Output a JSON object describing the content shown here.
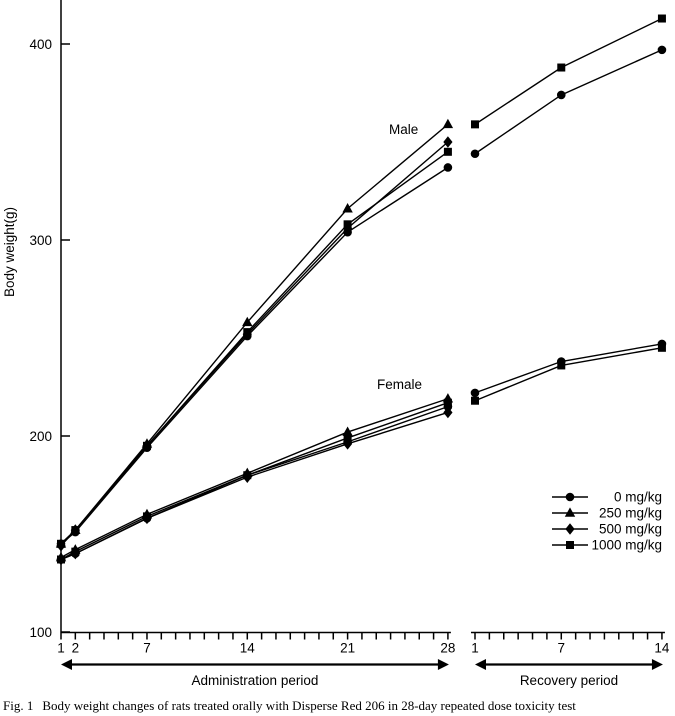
{
  "caption": {
    "fig_label": "Fig. 1",
    "text": "Body weight changes of rats treated orally with Disperse Red 206 in 28-day repeated dose toxicity test"
  },
  "chart_data": {
    "type": "line",
    "title": "",
    "xlabel": "",
    "ylabel": "Body weight(g)",
    "ylim": [
      100,
      420
    ],
    "yticks": [
      100,
      200,
      300,
      400
    ],
    "grid": false,
    "foreground_color": "#000000",
    "background_color": "#ffffff",
    "legend": {
      "position": "right-center",
      "entries": [
        {
          "label": "0 mg/kg",
          "marker": "circle"
        },
        {
          "label": "250 mg/kg",
          "marker": "triangle"
        },
        {
          "label": "500 mg/kg",
          "marker": "diamond"
        },
        {
          "label": "1000 mg/kg",
          "marker": "square"
        }
      ]
    },
    "annotations": [
      {
        "text": "Male",
        "x": 389,
        "y": 134
      },
      {
        "text": "Female",
        "x": 377,
        "y": 389
      }
    ],
    "panels": [
      {
        "id": "administration",
        "arrow_label": "Administration period",
        "day_min": 1,
        "day_max": 28,
        "labeled_ticks": [
          1,
          2,
          7,
          14,
          21,
          28
        ],
        "series": [
          {
            "group": "Male",
            "dose": "0 mg/kg",
            "marker": "circle",
            "days": [
              1,
              2,
              7,
              14,
              21,
              28
            ],
            "values": [
              145,
              151,
              194,
              251,
              304,
              337
            ]
          },
          {
            "group": "Male",
            "dose": "250 mg/kg",
            "marker": "triangle",
            "days": [
              1,
              2,
              7,
              14,
              21,
              28
            ],
            "values": [
              145,
              152,
              196,
              258,
              316,
              359
            ]
          },
          {
            "group": "Male",
            "dose": "500 mg/kg",
            "marker": "diamond",
            "days": [
              1,
              2,
              7,
              14,
              21,
              28
            ],
            "values": [
              144,
              152,
              195,
              252,
              306,
              350
            ]
          },
          {
            "group": "Male",
            "dose": "1000 mg/kg",
            "marker": "square",
            "days": [
              1,
              2,
              7,
              14,
              21,
              28
            ],
            "values": [
              145,
              152,
              195,
              253,
              308,
              345
            ]
          },
          {
            "group": "Female",
            "dose": "0 mg/kg",
            "marker": "circle",
            "days": [
              1,
              2,
              7,
              14,
              21,
              28
            ],
            "values": [
              137,
              140,
              158,
              180,
              197,
              215
            ]
          },
          {
            "group": "Female",
            "dose": "250 mg/kg",
            "marker": "triangle",
            "days": [
              1,
              2,
              7,
              14,
              21,
              28
            ],
            "values": [
              138,
              142,
              160,
              181,
              202,
              219
            ]
          },
          {
            "group": "Female",
            "dose": "500 mg/kg",
            "marker": "diamond",
            "days": [
              1,
              2,
              7,
              14,
              21,
              28
            ],
            "values": [
              137,
              140,
              158,
              179,
              196,
              212
            ]
          },
          {
            "group": "Female",
            "dose": "1000 mg/kg",
            "marker": "square",
            "days": [
              1,
              2,
              7,
              14,
              21,
              28
            ],
            "values": [
              137,
              141,
              159,
              180,
              199,
              217
            ]
          }
        ]
      },
      {
        "id": "recovery",
        "arrow_label": "Recovery period",
        "day_min": 1,
        "day_max": 14,
        "labeled_ticks": [
          1,
          7,
          14
        ],
        "series": [
          {
            "group": "Male",
            "dose": "0 mg/kg",
            "marker": "circle",
            "days": [
              1,
              7,
              14
            ],
            "values": [
              344,
              374,
              397
            ]
          },
          {
            "group": "Male",
            "dose": "1000 mg/kg",
            "marker": "square",
            "days": [
              1,
              7,
              14
            ],
            "values": [
              359,
              388,
              413
            ]
          },
          {
            "group": "Female",
            "dose": "0 mg/kg",
            "marker": "circle",
            "days": [
              1,
              7,
              14
            ],
            "values": [
              222,
              238,
              247
            ]
          },
          {
            "group": "Female",
            "dose": "1000 mg/kg",
            "marker": "square",
            "days": [
              1,
              7,
              14
            ],
            "values": [
              218,
              236,
              245
            ]
          }
        ]
      }
    ]
  }
}
